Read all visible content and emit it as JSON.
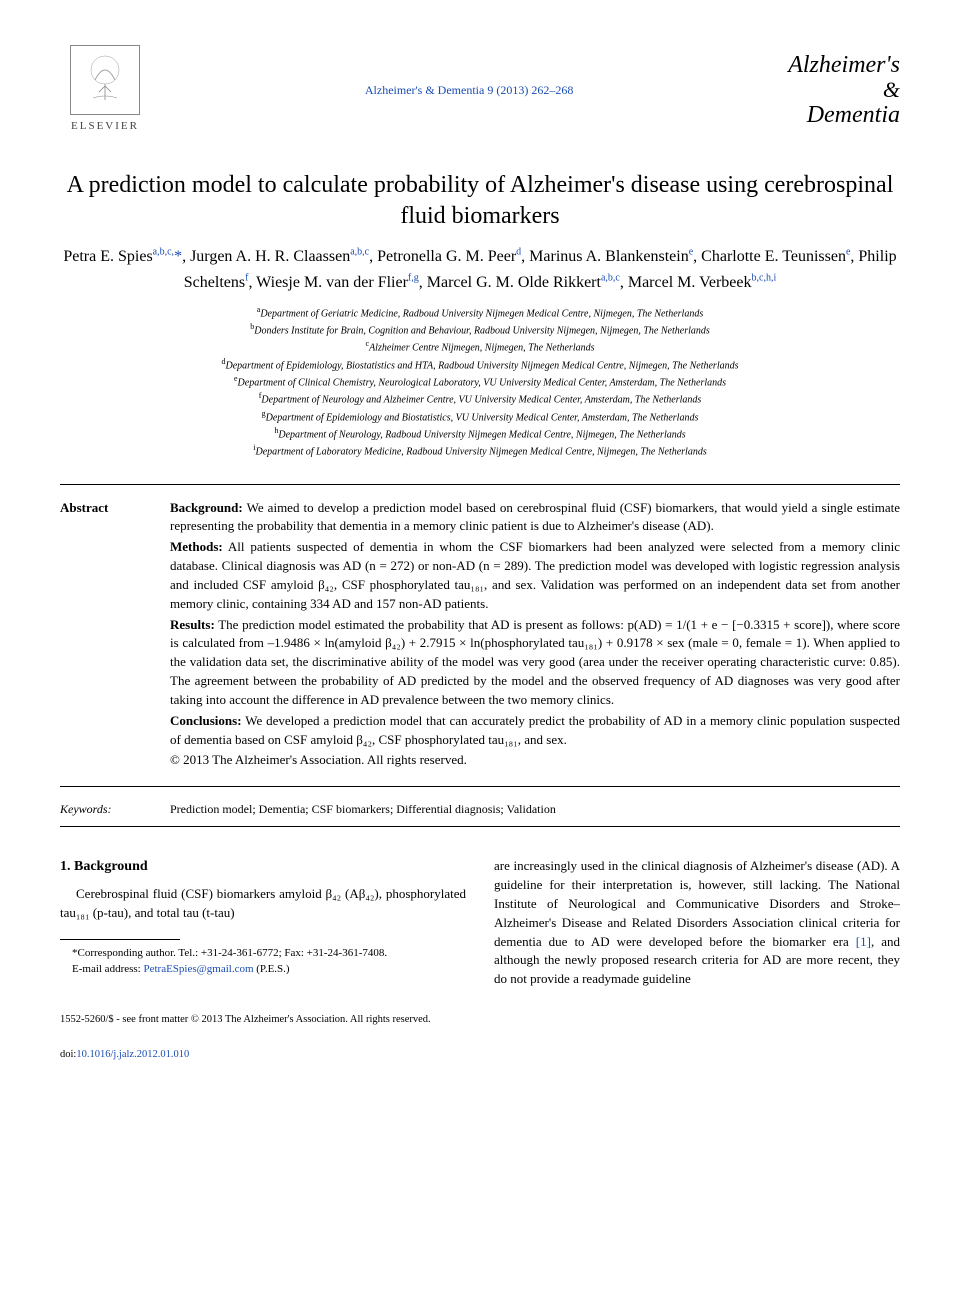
{
  "header": {
    "publisher": "ELSEVIER",
    "journal_ref": "Alzheimer's & Dementia 9 (2013) 262–268",
    "journal_name_line1": "Alzheimer's",
    "journal_name_amp": "&",
    "journal_name_line2": "Dementia"
  },
  "title": "A prediction model to calculate probability of Alzheimer's disease using cerebrospinal fluid biomarkers",
  "authors": [
    {
      "name": "Petra E. Spies",
      "aff": "a,b,c,",
      "corr": "*"
    },
    {
      "name": "Jurgen A. H. R. Claassen",
      "aff": "a,b,c"
    },
    {
      "name": "Petronella G. M. Peer",
      "aff": "d"
    },
    {
      "name": "Marinus A. Blankenstein",
      "aff": "e"
    },
    {
      "name": "Charlotte E. Teunissen",
      "aff": "e"
    },
    {
      "name": "Philip Scheltens",
      "aff": "f"
    },
    {
      "name": "Wiesje M. van der Flier",
      "aff": "f,g"
    },
    {
      "name": "Marcel G. M. Olde Rikkert",
      "aff": "a,b,c"
    },
    {
      "name": "Marcel M. Verbeek",
      "aff": "b,c,h,i"
    }
  ],
  "affiliations": [
    {
      "key": "a",
      "text": "Department of Geriatric Medicine, Radboud University Nijmegen Medical Centre, Nijmegen, The Netherlands"
    },
    {
      "key": "b",
      "text": "Donders Institute for Brain, Cognition and Behaviour, Radboud University Nijmegen, Nijmegen, The Netherlands"
    },
    {
      "key": "c",
      "text": "Alzheimer Centre Nijmegen, Nijmegen, The Netherlands"
    },
    {
      "key": "d",
      "text": "Department of Epidemiology, Biostatistics and HTA, Radboud University Nijmegen Medical Centre, Nijmegen, The Netherlands"
    },
    {
      "key": "e",
      "text": "Department of Clinical Chemistry, Neurological Laboratory, VU University Medical Center, Amsterdam, The Netherlands"
    },
    {
      "key": "f",
      "text": "Department of Neurology and Alzheimer Centre, VU University Medical Center, Amsterdam, The Netherlands"
    },
    {
      "key": "g",
      "text": "Department of Epidemiology and Biostatistics, VU University Medical Center, Amsterdam, The Netherlands"
    },
    {
      "key": "h",
      "text": "Department of Neurology, Radboud University Nijmegen Medical Centre, Nijmegen, The Netherlands"
    },
    {
      "key": "i",
      "text": "Department of Laboratory Medicine, Radboud University Nijmegen Medical Centre, Nijmegen, The Netherlands"
    }
  ],
  "abstract": {
    "label": "Abstract",
    "background_label": "Background:",
    "background": "We aimed to develop a prediction model based on cerebrospinal fluid (CSF) biomarkers, that would yield a single estimate representing the probability that dementia in a memory clinic patient is due to Alzheimer's disease (AD).",
    "methods_label": "Methods:",
    "methods": "All patients suspected of dementia in whom the CSF biomarkers had been analyzed were selected from a memory clinic database. Clinical diagnosis was AD (n = 272) or non-AD (n = 289). The prediction model was developed with logistic regression analysis and included CSF amyloid β₄₂, CSF phosphorylated tau₁₈₁, and sex. Validation was performed on an independent data set from another memory clinic, containing 334 AD and 157 non-AD patients.",
    "results_label": "Results:",
    "results": "The prediction model estimated the probability that AD is present as follows: p(AD) = 1/(1 + e − [−0.3315 + score]), where score is calculated from –1.9486 × ln(amyloid β₄₂) + 2.7915 × ln(phosphorylated tau₁₈₁) + 0.9178 × sex (male = 0, female = 1). When applied to the validation data set, the discriminative ability of the model was very good (area under the receiver operating characteristic curve: 0.85). The agreement between the probability of AD predicted by the model and the observed frequency of AD diagnoses was very good after taking into account the difference in AD prevalence between the two memory clinics.",
    "conclusions_label": "Conclusions:",
    "conclusions": "We developed a prediction model that can accurately predict the probability of AD in a memory clinic population suspected of dementia based on CSF amyloid β₄₂, CSF phosphorylated tau₁₈₁, and sex.",
    "copyright": "© 2013 The Alzheimer's Association. All rights reserved."
  },
  "keywords": {
    "label": "Keywords:",
    "text": "Prediction model; Dementia; CSF biomarkers; Differential diagnosis; Validation"
  },
  "body": {
    "section1_heading": "1. Background",
    "col1_p1": "Cerebrospinal fluid (CSF) biomarkers amyloid β₄₂ (Aβ₄₂), phosphorylated tau₁₈₁ (p-tau), and total tau (t-tau)",
    "col2_p1": "are increasingly used in the clinical diagnosis of Alzheimer's disease (AD). A guideline for their interpretation is, however, still lacking. The National Institute of Neurological and Communicative Disorders and Stroke–Alzheimer's Disease and Related Disorders Association clinical criteria for dementia due to AD were developed before the biomarker era ",
    "ref1": "[1]",
    "col2_p1_cont": ", and although the newly proposed research criteria for AD are more recent, they do not provide a readymade guideline"
  },
  "footnote": {
    "corr": "*Corresponding author. Tel.: +31-24-361-6772; Fax: +31-24-361-7408.",
    "email_label": "E-mail address: ",
    "email": "PetraESpies@gmail.com",
    "email_suffix": " (P.E.S.)"
  },
  "footer": {
    "issn": "1552-5260/$ - see front matter © 2013 The Alzheimer's Association. All rights reserved.",
    "doi_label": "doi:",
    "doi": "10.1016/j.jalz.2012.01.010"
  },
  "colors": {
    "link": "#1a4db3",
    "text": "#000000",
    "background": "#ffffff"
  },
  "fonts": {
    "body": "Georgia, Times New Roman, serif",
    "title_size": 24,
    "body_size": 13,
    "affil_size": 10
  }
}
